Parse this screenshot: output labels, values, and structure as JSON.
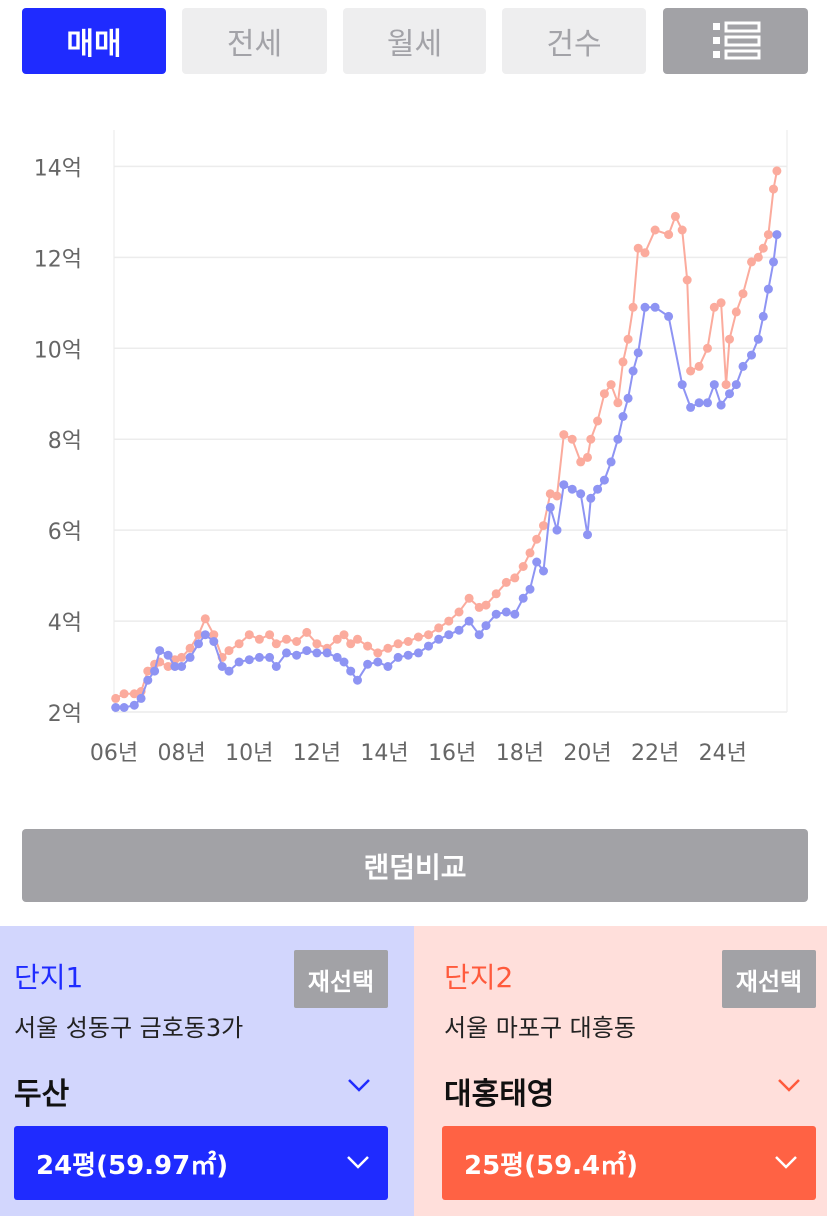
{
  "tabs": [
    {
      "label": "매매",
      "active": true
    },
    {
      "label": "전세",
      "active": false
    },
    {
      "label": "월세",
      "active": false
    },
    {
      "label": "건수",
      "active": false
    }
  ],
  "menu_icon": "list-icon",
  "colors": {
    "primary": "#1f2bff",
    "secondary": "#ff6244",
    "series1": "#8e94f3",
    "series2": "#fbab9d",
    "gray": "#a2a2a6"
  },
  "chart_data": {
    "type": "line",
    "ylim": [
      2,
      14.8
    ],
    "xlim": [
      2006.0,
      2025.9
    ],
    "y_ticks": [
      {
        "v": 2,
        "label": "2억"
      },
      {
        "v": 4,
        "label": "4억"
      },
      {
        "v": 6,
        "label": "6억"
      },
      {
        "v": 8,
        "label": "8억"
      },
      {
        "v": 10,
        "label": "10억"
      },
      {
        "v": 12,
        "label": "12억"
      },
      {
        "v": 14,
        "label": "14억"
      }
    ],
    "x_ticks": [
      {
        "v": 2006,
        "label": "06년"
      },
      {
        "v": 2008,
        "label": "08년"
      },
      {
        "v": 2010,
        "label": "10년"
      },
      {
        "v": 2012,
        "label": "12년"
      },
      {
        "v": 2014,
        "label": "14년"
      },
      {
        "v": 2016,
        "label": "16년"
      },
      {
        "v": 2018,
        "label": "18년"
      },
      {
        "v": 2020,
        "label": "20년"
      },
      {
        "v": 2022,
        "label": "22년"
      },
      {
        "v": 2024,
        "label": "24년"
      }
    ],
    "grid": true,
    "series": [
      {
        "color": "#8e94f3",
        "points": [
          [
            2006.05,
            2.1
          ],
          [
            2006.3,
            2.1
          ],
          [
            2006.6,
            2.15
          ],
          [
            2006.8,
            2.3
          ],
          [
            2007.0,
            2.7
          ],
          [
            2007.2,
            2.9
          ],
          [
            2007.35,
            3.35
          ],
          [
            2007.6,
            3.25
          ],
          [
            2007.8,
            3.0
          ],
          [
            2008.0,
            3.0
          ],
          [
            2008.25,
            3.2
          ],
          [
            2008.5,
            3.5
          ],
          [
            2008.7,
            3.7
          ],
          [
            2008.95,
            3.55
          ],
          [
            2009.2,
            3.0
          ],
          [
            2009.4,
            2.9
          ],
          [
            2009.7,
            3.1
          ],
          [
            2010.0,
            3.15
          ],
          [
            2010.3,
            3.2
          ],
          [
            2010.6,
            3.2
          ],
          [
            2010.8,
            3.0
          ],
          [
            2011.1,
            3.3
          ],
          [
            2011.4,
            3.25
          ],
          [
            2011.7,
            3.35
          ],
          [
            2012.0,
            3.3
          ],
          [
            2012.3,
            3.3
          ],
          [
            2012.6,
            3.2
          ],
          [
            2012.8,
            3.1
          ],
          [
            2013.0,
            2.9
          ],
          [
            2013.2,
            2.7
          ],
          [
            2013.5,
            3.05
          ],
          [
            2013.8,
            3.1
          ],
          [
            2014.1,
            3.0
          ],
          [
            2014.4,
            3.2
          ],
          [
            2014.7,
            3.25
          ],
          [
            2015.0,
            3.3
          ],
          [
            2015.3,
            3.45
          ],
          [
            2015.6,
            3.6
          ],
          [
            2015.9,
            3.7
          ],
          [
            2016.2,
            3.8
          ],
          [
            2016.5,
            4.0
          ],
          [
            2016.8,
            3.7
          ],
          [
            2017.0,
            3.9
          ],
          [
            2017.3,
            4.15
          ],
          [
            2017.6,
            4.2
          ],
          [
            2017.85,
            4.15
          ],
          [
            2018.1,
            4.5
          ],
          [
            2018.3,
            4.7
          ],
          [
            2018.5,
            5.3
          ],
          [
            2018.7,
            5.1
          ],
          [
            2018.9,
            6.5
          ],
          [
            2019.1,
            6.0
          ],
          [
            2019.3,
            7.0
          ],
          [
            2019.55,
            6.9
          ],
          [
            2019.8,
            6.8
          ],
          [
            2020.0,
            5.9
          ],
          [
            2020.1,
            6.7
          ],
          [
            2020.3,
            6.9
          ],
          [
            2020.5,
            7.1
          ],
          [
            2020.7,
            7.5
          ],
          [
            2020.9,
            8.0
          ],
          [
            2021.05,
            8.5
          ],
          [
            2021.2,
            8.9
          ],
          [
            2021.35,
            9.5
          ],
          [
            2021.5,
            9.9
          ],
          [
            2021.7,
            10.9
          ],
          [
            2022.0,
            10.9
          ],
          [
            2022.4,
            10.7
          ],
          [
            2022.8,
            9.2
          ],
          [
            2023.05,
            8.7
          ],
          [
            2023.3,
            8.8
          ],
          [
            2023.55,
            8.8
          ],
          [
            2023.75,
            9.2
          ],
          [
            2023.95,
            8.75
          ],
          [
            2024.2,
            9.0
          ],
          [
            2024.4,
            9.2
          ],
          [
            2024.6,
            9.6
          ],
          [
            2024.85,
            9.85
          ],
          [
            2025.05,
            10.2
          ],
          [
            2025.2,
            10.7
          ],
          [
            2025.35,
            11.3
          ],
          [
            2025.5,
            11.9
          ],
          [
            2025.6,
            12.5
          ]
        ]
      },
      {
        "color": "#fbab9d",
        "points": [
          [
            2006.05,
            2.3
          ],
          [
            2006.3,
            2.4
          ],
          [
            2006.6,
            2.4
          ],
          [
            2006.8,
            2.45
          ],
          [
            2007.0,
            2.9
          ],
          [
            2007.2,
            3.05
          ],
          [
            2007.35,
            3.1
          ],
          [
            2007.6,
            3.0
          ],
          [
            2007.8,
            3.15
          ],
          [
            2008.0,
            3.2
          ],
          [
            2008.25,
            3.4
          ],
          [
            2008.5,
            3.7
          ],
          [
            2008.7,
            4.05
          ],
          [
            2008.95,
            3.7
          ],
          [
            2009.2,
            3.2
          ],
          [
            2009.4,
            3.35
          ],
          [
            2009.7,
            3.5
          ],
          [
            2010.0,
            3.7
          ],
          [
            2010.3,
            3.6
          ],
          [
            2010.6,
            3.7
          ],
          [
            2010.8,
            3.5
          ],
          [
            2011.1,
            3.6
          ],
          [
            2011.4,
            3.55
          ],
          [
            2011.7,
            3.75
          ],
          [
            2012.0,
            3.5
          ],
          [
            2012.3,
            3.4
          ],
          [
            2012.6,
            3.6
          ],
          [
            2012.8,
            3.7
          ],
          [
            2013.0,
            3.5
          ],
          [
            2013.2,
            3.6
          ],
          [
            2013.5,
            3.45
          ],
          [
            2013.8,
            3.3
          ],
          [
            2014.1,
            3.4
          ],
          [
            2014.4,
            3.5
          ],
          [
            2014.7,
            3.55
          ],
          [
            2015.0,
            3.65
          ],
          [
            2015.3,
            3.7
          ],
          [
            2015.6,
            3.85
          ],
          [
            2015.9,
            4.0
          ],
          [
            2016.2,
            4.2
          ],
          [
            2016.5,
            4.5
          ],
          [
            2016.8,
            4.3
          ],
          [
            2017.0,
            4.35
          ],
          [
            2017.3,
            4.6
          ],
          [
            2017.6,
            4.85
          ],
          [
            2017.85,
            4.95
          ],
          [
            2018.1,
            5.2
          ],
          [
            2018.3,
            5.5
          ],
          [
            2018.5,
            5.8
          ],
          [
            2018.7,
            6.1
          ],
          [
            2018.9,
            6.8
          ],
          [
            2019.1,
            6.75
          ],
          [
            2019.3,
            8.1
          ],
          [
            2019.55,
            8.0
          ],
          [
            2019.8,
            7.5
          ],
          [
            2020.0,
            7.6
          ],
          [
            2020.1,
            8.0
          ],
          [
            2020.3,
            8.4
          ],
          [
            2020.5,
            9.0
          ],
          [
            2020.7,
            9.2
          ],
          [
            2020.9,
            8.8
          ],
          [
            2021.05,
            9.7
          ],
          [
            2021.2,
            10.2
          ],
          [
            2021.35,
            10.9
          ],
          [
            2021.5,
            12.2
          ],
          [
            2021.7,
            12.1
          ],
          [
            2022.0,
            12.6
          ],
          [
            2022.4,
            12.5
          ],
          [
            2022.6,
            12.9
          ],
          [
            2022.8,
            12.6
          ],
          [
            2022.95,
            11.5
          ],
          [
            2023.05,
            9.5
          ],
          [
            2023.3,
            9.6
          ],
          [
            2023.55,
            10.0
          ],
          [
            2023.75,
            10.9
          ],
          [
            2023.95,
            11.0
          ],
          [
            2024.1,
            9.2
          ],
          [
            2024.2,
            10.2
          ],
          [
            2024.4,
            10.8
          ],
          [
            2024.6,
            11.2
          ],
          [
            2024.85,
            11.9
          ],
          [
            2025.05,
            12.0
          ],
          [
            2025.2,
            12.2
          ],
          [
            2025.35,
            12.5
          ],
          [
            2025.5,
            13.5
          ],
          [
            2025.6,
            13.9
          ]
        ]
      }
    ]
  },
  "random_compare_label": "랜덤비교",
  "complex1": {
    "title": "단지1",
    "reselect": "재선택",
    "address": "서울 성동구 금호동3가",
    "name": "두산",
    "size": "24평(59.97㎡)"
  },
  "complex2": {
    "title": "단지2",
    "reselect": "재선택",
    "address": "서울 마포구 대흥동",
    "name": "대홍태영",
    "size": "25평(59.4㎡)"
  }
}
